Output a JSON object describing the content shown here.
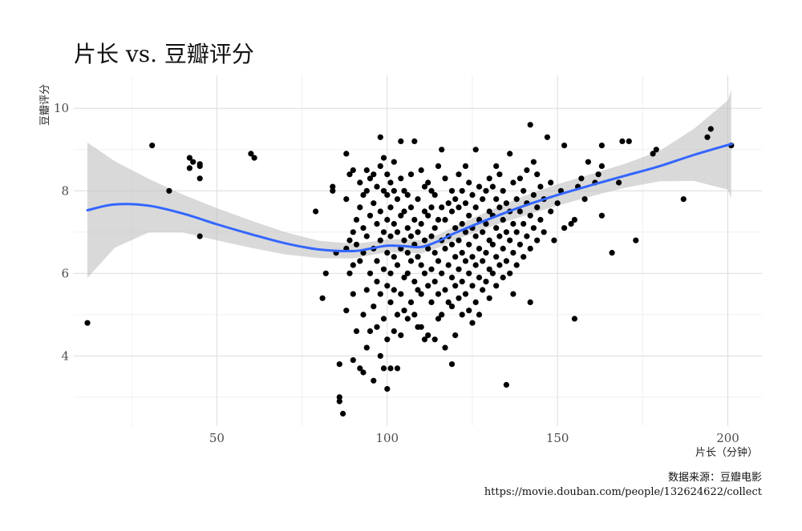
{
  "chart_data": {
    "type": "scatter",
    "title": "片长 vs. 豆瓣评分",
    "xlabel": "片长（分钟）",
    "ylabel": "豆瓣评分",
    "caption_lines": [
      "数据来源：豆瓣电影",
      "https://movie.douban.com/people/132624622/collect"
    ],
    "xlim": [
      8,
      210
    ],
    "ylim": [
      2.3,
      10.8
    ],
    "x_ticks": [
      50,
      100,
      150,
      200
    ],
    "y_ticks": [
      4,
      6,
      8,
      10
    ],
    "x_minor": [
      25,
      75,
      125,
      175
    ],
    "y_minor": [
      3,
      5,
      7,
      9
    ],
    "grid": true,
    "colors": {
      "points": "#000000",
      "smooth": "#3366ff",
      "band": "#bfbfbf"
    },
    "points": [
      [
        12,
        4.8
      ],
      [
        31,
        9.1
      ],
      [
        36,
        8.0
      ],
      [
        42,
        8.8
      ],
      [
        43,
        8.7
      ],
      [
        42,
        8.55
      ],
      [
        45,
        8.65
      ],
      [
        45,
        8.6
      ],
      [
        45,
        8.3
      ],
      [
        45,
        6.9
      ],
      [
        60,
        8.9
      ],
      [
        61,
        8.8
      ],
      [
        79,
        7.5
      ],
      [
        81,
        5.4
      ],
      [
        82,
        6.0
      ],
      [
        84,
        8.1
      ],
      [
        84,
        8.0
      ],
      [
        85,
        6.5
      ],
      [
        86,
        3.0
      ],
      [
        86,
        2.9
      ],
      [
        86,
        3.8
      ],
      [
        87,
        2.6
      ],
      [
        88,
        5.1
      ],
      [
        88,
        6.6
      ],
      [
        88,
        7.8
      ],
      [
        88,
        8.9
      ],
      [
        89,
        6.0
      ],
      [
        89,
        8.4
      ],
      [
        89,
        6.8
      ],
      [
        90,
        3.9
      ],
      [
        90,
        7.0
      ],
      [
        90,
        6.2
      ],
      [
        90,
        5.5
      ],
      [
        90,
        8.5
      ],
      [
        91,
        7.3
      ],
      [
        91,
        4.6
      ],
      [
        91,
        6.7
      ],
      [
        92,
        3.7
      ],
      [
        92,
        6.3
      ],
      [
        92,
        7.6
      ],
      [
        92,
        8.2
      ],
      [
        93,
        3.6
      ],
      [
        93,
        5.0
      ],
      [
        93,
        6.5
      ],
      [
        93,
        7.1
      ],
      [
        93,
        7.9
      ],
      [
        94,
        4.2
      ],
      [
        94,
        5.6
      ],
      [
        94,
        6.9
      ],
      [
        94,
        8.0
      ],
      [
        94,
        8.5
      ],
      [
        95,
        4.6
      ],
      [
        95,
        6.0
      ],
      [
        95,
        7.4
      ],
      [
        95,
        8.3
      ],
      [
        96,
        3.4
      ],
      [
        96,
        5.2
      ],
      [
        96,
        6.6
      ],
      [
        96,
        7.7
      ],
      [
        96,
        8.4
      ],
      [
        97,
        4.7
      ],
      [
        97,
        5.8
      ],
      [
        97,
        6.3
      ],
      [
        97,
        7.2
      ],
      [
        97,
        8.1
      ],
      [
        98,
        4.0
      ],
      [
        98,
        5.5
      ],
      [
        98,
        6.8
      ],
      [
        98,
        7.5
      ],
      [
        98,
        8.6
      ],
      [
        98,
        9.3
      ],
      [
        99,
        3.7
      ],
      [
        99,
        4.9
      ],
      [
        99,
        6.1
      ],
      [
        99,
        7.0
      ],
      [
        99,
        8.0
      ],
      [
        99,
        8.8
      ],
      [
        100,
        3.2
      ],
      [
        100,
        4.4
      ],
      [
        100,
        5.7
      ],
      [
        100,
        6.5
      ],
      [
        100,
        7.3
      ],
      [
        100,
        7.9
      ],
      [
        100,
        8.4
      ],
      [
        101,
        3.7
      ],
      [
        101,
        5.3
      ],
      [
        101,
        6.0
      ],
      [
        101,
        6.9
      ],
      [
        101,
        7.6
      ],
      [
        101,
        8.2
      ],
      [
        102,
        4.6
      ],
      [
        102,
        5.6
      ],
      [
        102,
        6.4
      ],
      [
        102,
        7.2
      ],
      [
        102,
        8.0
      ],
      [
        102,
        8.7
      ],
      [
        103,
        3.7
      ],
      [
        103,
        5.0
      ],
      [
        103,
        6.2
      ],
      [
        103,
        7.0
      ],
      [
        103,
        7.8
      ],
      [
        104,
        4.5
      ],
      [
        104,
        5.5
      ],
      [
        104,
        6.6
      ],
      [
        104,
        7.4
      ],
      [
        104,
        8.3
      ],
      [
        104,
        9.2
      ],
      [
        105,
        5.1
      ],
      [
        105,
        5.9
      ],
      [
        105,
        6.8
      ],
      [
        105,
        7.5
      ],
      [
        105,
        8.0
      ],
      [
        106,
        4.9
      ],
      [
        106,
        6.0
      ],
      [
        106,
        6.5
      ],
      [
        106,
        7.1
      ],
      [
        106,
        7.9
      ],
      [
        107,
        5.3
      ],
      [
        107,
        6.3
      ],
      [
        107,
        6.9
      ],
      [
        107,
        7.6
      ],
      [
        107,
        8.4
      ],
      [
        108,
        5.0
      ],
      [
        108,
        5.8
      ],
      [
        108,
        6.7
      ],
      [
        108,
        7.3
      ],
      [
        108,
        9.2
      ],
      [
        109,
        4.7
      ],
      [
        109,
        5.6
      ],
      [
        109,
        6.4
      ],
      [
        109,
        7.0
      ],
      [
        109,
        7.8
      ],
      [
        110,
        4.7
      ],
      [
        110,
        5.5
      ],
      [
        110,
        6.2
      ],
      [
        110,
        7.2
      ],
      [
        110,
        8.5
      ],
      [
        111,
        4.4
      ],
      [
        111,
        6.0
      ],
      [
        111,
        6.8
      ],
      [
        111,
        7.5
      ],
      [
        111,
        8.1
      ],
      [
        112,
        4.5
      ],
      [
        112,
        5.7
      ],
      [
        112,
        6.6
      ],
      [
        112,
        7.4
      ],
      [
        112,
        8.2
      ],
      [
        113,
        5.3
      ],
      [
        113,
        6.1
      ],
      [
        113,
        6.9
      ],
      [
        113,
        7.6
      ],
      [
        113,
        8.0
      ],
      [
        114,
        4.4
      ],
      [
        114,
        5.8
      ],
      [
        114,
        6.5
      ],
      [
        114,
        7.1
      ],
      [
        114,
        7.9
      ],
      [
        115,
        4.9
      ],
      [
        115,
        5.5
      ],
      [
        115,
        6.3
      ],
      [
        115,
        7.3
      ],
      [
        115,
        8.6
      ],
      [
        116,
        5.0
      ],
      [
        116,
        6.0
      ],
      [
        116,
        6.8
      ],
      [
        116,
        7.6
      ],
      [
        116,
        9.0
      ],
      [
        117,
        4.2
      ],
      [
        117,
        5.6
      ],
      [
        117,
        6.6
      ],
      [
        117,
        7.3
      ],
      [
        117,
        8.3
      ],
      [
        118,
        5.3
      ],
      [
        118,
        6.2
      ],
      [
        118,
        6.9
      ],
      [
        118,
        7.7
      ],
      [
        119,
        3.8
      ],
      [
        119,
        5.2
      ],
      [
        119,
        5.9
      ],
      [
        119,
        6.7
      ],
      [
        119,
        7.5
      ],
      [
        119,
        8.0
      ],
      [
        120,
        4.5
      ],
      [
        120,
        5.7
      ],
      [
        120,
        6.4
      ],
      [
        120,
        7.1
      ],
      [
        120,
        7.8
      ],
      [
        121,
        5.4
      ],
      [
        121,
        6.1
      ],
      [
        121,
        6.8
      ],
      [
        121,
        7.6
      ],
      [
        121,
        8.4
      ],
      [
        122,
        5.0
      ],
      [
        122,
        5.8
      ],
      [
        122,
        6.5
      ],
      [
        122,
        7.2
      ],
      [
        122,
        8.0
      ],
      [
        123,
        5.5
      ],
      [
        123,
        6.3
      ],
      [
        123,
        7.0
      ],
      [
        123,
        7.7
      ],
      [
        123,
        8.6
      ],
      [
        124,
        5.1
      ],
      [
        124,
        6.0
      ],
      [
        124,
        6.7
      ],
      [
        124,
        7.4
      ],
      [
        124,
        8.2
      ],
      [
        125,
        4.8
      ],
      [
        125,
        5.7
      ],
      [
        125,
        6.4
      ],
      [
        125,
        7.1
      ],
      [
        125,
        7.9
      ],
      [
        126,
        5.3
      ],
      [
        126,
        6.2
      ],
      [
        126,
        6.9
      ],
      [
        126,
        7.6
      ],
      [
        126,
        9.0
      ],
      [
        127,
        5.0
      ],
      [
        127,
        5.9
      ],
      [
        127,
        6.6
      ],
      [
        127,
        7.3
      ],
      [
        127,
        8.1
      ],
      [
        128,
        5.6
      ],
      [
        128,
        6.3
      ],
      [
        128,
        7.0
      ],
      [
        128,
        7.8
      ],
      [
        129,
        5.8
      ],
      [
        129,
        6.5
      ],
      [
        129,
        7.2
      ],
      [
        129,
        8.0
      ],
      [
        130,
        5.4
      ],
      [
        130,
        6.1
      ],
      [
        130,
        6.8
      ],
      [
        130,
        7.5
      ],
      [
        130,
        8.3
      ],
      [
        131,
        6.0
      ],
      [
        131,
        6.7
      ],
      [
        131,
        7.4
      ],
      [
        131,
        8.1
      ],
      [
        132,
        5.7
      ],
      [
        132,
        6.4
      ],
      [
        132,
        7.1
      ],
      [
        132,
        7.8
      ],
      [
        132,
        8.6
      ],
      [
        133,
        6.2
      ],
      [
        133,
        6.9
      ],
      [
        133,
        7.6
      ],
      [
        133,
        8.4
      ],
      [
        134,
        5.9
      ],
      [
        134,
        6.6
      ],
      [
        134,
        7.3
      ],
      [
        134,
        8.0
      ],
      [
        135,
        3.3
      ],
      [
        135,
        6.3
      ],
      [
        135,
        7.0
      ],
      [
        135,
        7.7
      ],
      [
        136,
        6.0
      ],
      [
        136,
        6.8
      ],
      [
        136,
        7.5
      ],
      [
        136,
        8.9
      ],
      [
        137,
        5.5
      ],
      [
        137,
        6.5
      ],
      [
        137,
        7.2
      ],
      [
        137,
        8.2
      ],
      [
        138,
        6.2
      ],
      [
        138,
        7.0
      ],
      [
        138,
        7.8
      ],
      [
        139,
        6.7
      ],
      [
        139,
        7.5
      ],
      [
        139,
        8.3
      ],
      [
        140,
        6.4
      ],
      [
        140,
        7.2
      ],
      [
        140,
        8.0
      ],
      [
        141,
        6.9
      ],
      [
        141,
        7.7
      ],
      [
        141,
        8.5
      ],
      [
        142,
        5.3
      ],
      [
        142,
        6.6
      ],
      [
        142,
        7.4
      ],
      [
        142,
        9.6
      ],
      [
        143,
        7.1
      ],
      [
        143,
        7.9
      ],
      [
        143,
        8.7
      ],
      [
        144,
        6.8
      ],
      [
        144,
        7.6
      ],
      [
        144,
        8.4
      ],
      [
        145,
        7.3
      ],
      [
        145,
        8.1
      ],
      [
        146,
        7.0
      ],
      [
        146,
        7.8
      ],
      [
        147,
        9.3
      ],
      [
        148,
        7.5
      ],
      [
        148,
        8.2
      ],
      [
        149,
        6.8
      ],
      [
        150,
        7.7
      ],
      [
        151,
        8.0
      ],
      [
        152,
        9.1
      ],
      [
        152,
        7.1
      ],
      [
        154,
        7.2
      ],
      [
        155,
        4.9
      ],
      [
        155,
        7.3
      ],
      [
        156,
        8.1
      ],
      [
        157,
        8.3
      ],
      [
        158,
        7.8
      ],
      [
        159,
        8.7
      ],
      [
        161,
        8.2
      ],
      [
        162,
        8.4
      ],
      [
        163,
        7.4
      ],
      [
        163,
        8.6
      ],
      [
        163,
        9.1
      ],
      [
        166,
        6.5
      ],
      [
        168,
        8.2
      ],
      [
        169,
        9.2
      ],
      [
        171,
        9.2
      ],
      [
        173,
        6.8
      ],
      [
        178,
        8.9
      ],
      [
        179,
        9.0
      ],
      [
        187,
        7.8
      ],
      [
        194,
        9.3
      ],
      [
        195,
        9.5
      ],
      [
        201,
        9.1
      ]
    ],
    "smooth": {
      "x": [
        12,
        20,
        30,
        40,
        50,
        60,
        70,
        80,
        90,
        95,
        100,
        105,
        110,
        115,
        120,
        130,
        140,
        150,
        160,
        170,
        180,
        190,
        200,
        201
      ],
      "y": [
        7.53,
        7.67,
        7.64,
        7.45,
        7.19,
        6.95,
        6.73,
        6.58,
        6.54,
        6.6,
        6.67,
        6.66,
        6.64,
        6.78,
        6.98,
        7.32,
        7.63,
        7.9,
        8.14,
        8.37,
        8.6,
        8.87,
        9.11,
        9.13
      ]
    },
    "band": {
      "upper": [
        9.17,
        8.72,
        8.29,
        7.91,
        7.58,
        7.28,
        7.0,
        6.79,
        6.72,
        6.76,
        6.83,
        6.82,
        6.8,
        6.94,
        7.15,
        7.52,
        7.87,
        8.16,
        8.41,
        8.66,
        8.97,
        9.5,
        10.19,
        10.45
      ],
      "lower": [
        5.89,
        6.62,
        6.99,
        6.99,
        6.8,
        6.62,
        6.46,
        6.37,
        6.36,
        6.44,
        6.51,
        6.5,
        6.48,
        6.62,
        6.81,
        7.12,
        7.39,
        7.64,
        7.87,
        8.08,
        8.23,
        8.24,
        8.03,
        7.81
      ]
    }
  }
}
